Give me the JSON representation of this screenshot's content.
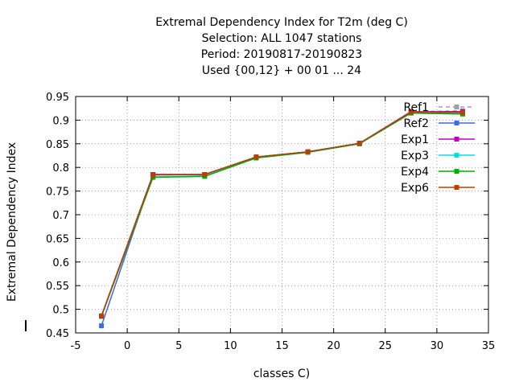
{
  "chart_data": {
    "type": "line",
    "title": [
      "Extremal Dependency Index  for T2m (deg C)",
      "Selection: ALL    1047 stations",
      "Period: 20190817-20190823",
      "Used {00,12} + 00 01 ... 24"
    ],
    "xlabel": "classes C)",
    "ylabel": "Extremal Dependency Index",
    "xlim": [
      -5,
      35
    ],
    "ylim": [
      0.45,
      0.95
    ],
    "xticks": [
      -5,
      0,
      5,
      10,
      15,
      20,
      25,
      30,
      35
    ],
    "yticks": [
      0.45,
      0.5,
      0.55,
      0.6,
      0.65,
      0.7,
      0.75,
      0.8,
      0.85,
      0.9,
      0.95
    ],
    "grid": true,
    "legend_position": "top-right",
    "x": [
      -2.5,
      2.5,
      7.5,
      12.5,
      17.5,
      22.5,
      27.5,
      32.5
    ],
    "series": [
      {
        "name": "Ref1",
        "color": "#a0a0a0",
        "dashed": true,
        "values": [
          0.485,
          0.785,
          0.785,
          0.822,
          0.833,
          0.851,
          0.918,
          0.92
        ]
      },
      {
        "name": "Ref2",
        "color": "#4169e1",
        "dashed": false,
        "values": [
          0.465,
          0.785,
          0.785,
          0.822,
          0.833,
          0.851,
          0.917,
          0.918
        ]
      },
      {
        "name": "Exp1",
        "color": "#c000c0",
        "dashed": false,
        "values": [
          0.486,
          0.785,
          0.785,
          0.822,
          0.833,
          0.851,
          0.918,
          0.918
        ]
      },
      {
        "name": "Exp3",
        "color": "#00e0e0",
        "dashed": false,
        "values": [
          0.485,
          0.78,
          0.782,
          0.82,
          0.832,
          0.85,
          0.915,
          0.913
        ]
      },
      {
        "name": "Exp4",
        "color": "#00b000",
        "dashed": false,
        "values": [
          0.485,
          0.779,
          0.781,
          0.82,
          0.832,
          0.85,
          0.915,
          0.913
        ]
      },
      {
        "name": "Exp6",
        "color": "#b84000",
        "dashed": false,
        "values": [
          0.486,
          0.784,
          0.785,
          0.822,
          0.833,
          0.851,
          0.917,
          0.916
        ]
      }
    ]
  }
}
